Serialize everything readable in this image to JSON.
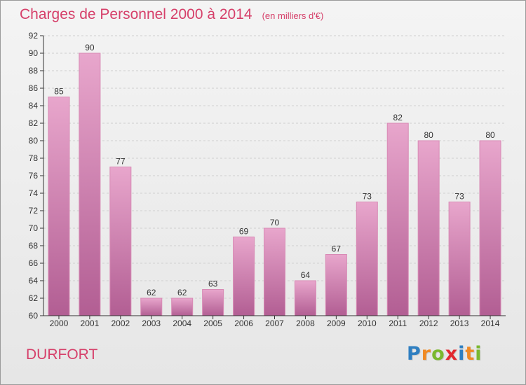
{
  "title": "Charges de Personnel 2000 à 2014",
  "subtitle": "(en milliers d'€)",
  "commune": "DURFORT",
  "brand": {
    "letters": [
      "P",
      "r",
      "o",
      "x",
      "i",
      "t",
      "i"
    ],
    "colors": [
      "#2f7fc1",
      "#f08a24",
      "#7ab82e",
      "#e2282f",
      "#2f7fc1",
      "#f08a24",
      "#7ab82e"
    ]
  },
  "colors": {
    "title": "#d6406a",
    "bar_top": "#e8a6cc",
    "bar_bottom": "#b25e93",
    "bar_stroke": "#d88ab5",
    "grid": "#cfcfcf",
    "axis": "#333333"
  },
  "chart_data": {
    "type": "bar",
    "categories": [
      "2000",
      "2001",
      "2002",
      "2003",
      "2004",
      "2005",
      "2006",
      "2007",
      "2008",
      "2009",
      "2010",
      "2011",
      "2012",
      "2013",
      "2014"
    ],
    "values": [
      85,
      90,
      77,
      62,
      62,
      63,
      69,
      70,
      64,
      67,
      73,
      82,
      80,
      73,
      80
    ],
    "ylim": [
      60,
      92
    ],
    "yticks": [
      60,
      62,
      64,
      66,
      68,
      70,
      72,
      74,
      76,
      78,
      80,
      82,
      84,
      86,
      88,
      90,
      92
    ],
    "grid": true,
    "data_labels": true
  }
}
